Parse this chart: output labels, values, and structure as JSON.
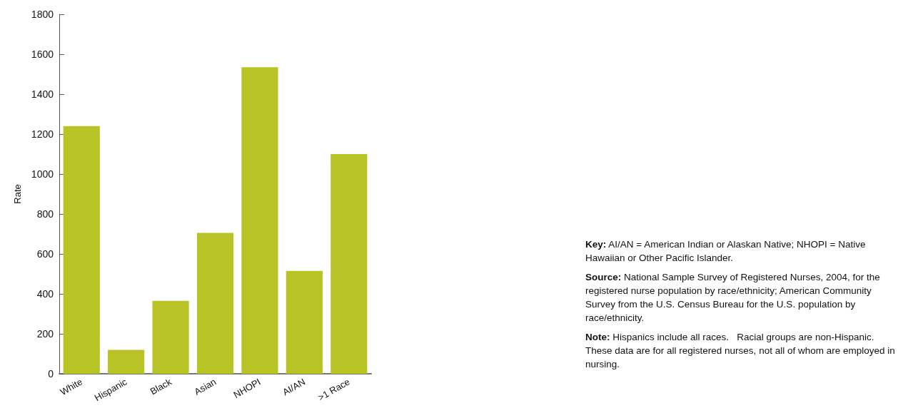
{
  "chart_data": {
    "type": "bar",
    "ylabel": "Rate",
    "categories": [
      "White",
      "Hispanic",
      "Black",
      "Asian",
      "NHOPI",
      "AI/AN",
      ">1 Race"
    ],
    "values": [
      1240,
      120,
      365,
      705,
      1535,
      515,
      1100
    ],
    "color": "#b8c425",
    "ylim": [
      0,
      1800
    ],
    "yticks": [
      0,
      200,
      400,
      600,
      800,
      1000,
      1200,
      1400,
      1600,
      1800
    ],
    "grid": false,
    "annotations": [
      "Key: AI/AN = American Indian or Alaskan Native; NHOPI = Native Hawaiian or Other Pacific Islander.",
      "Source: National Sample Survey of Registered Nurses, 2004, for the registered nurse population by race/ethnicity; American Community Survey from the U.S. Census Bureau for the U.S. population by race/ethnicity.",
      "Note: Hispanics include all races.   Racial groups are non-Hispanic.  These data are for all registered nurses, not all of whom are employed in nursing."
    ]
  }
}
